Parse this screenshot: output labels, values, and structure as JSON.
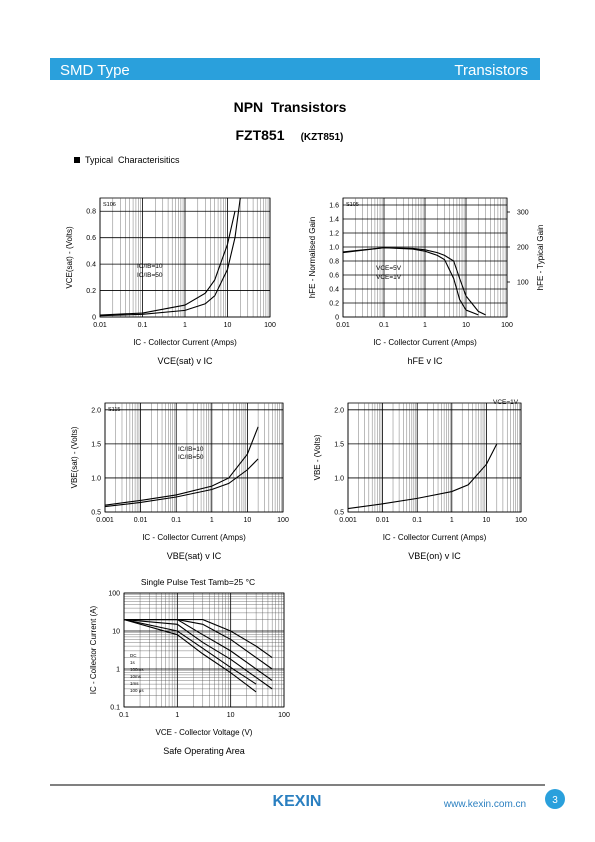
{
  "header": {
    "left": "SMD Type",
    "right": "Transistors"
  },
  "title": "NPN  Transistors",
  "part": "FZT851",
  "alt_part": "(KZT851)",
  "section": "Typical  Characterisitics",
  "chart_data": [
    {
      "type": "line",
      "code": "S106",
      "caption": "VCE(sat) v IC",
      "xlabel": "IC - Collector Current (Amps)",
      "ylabel": "VCE(sat) - (Volts)",
      "xlog": true,
      "xlim": [
        0.01,
        100
      ],
      "xticks": [
        0.01,
        0.1,
        1,
        10,
        100
      ],
      "ylim": [
        0,
        0.9
      ],
      "yticks": [
        0,
        0.2,
        0.4,
        0.6,
        0.8
      ],
      "grid": true,
      "x": [
        0.01,
        0.1,
        1,
        3,
        5,
        10,
        15,
        20
      ],
      "series": [
        {
          "name": "IC/IB=10",
          "color": "#000000",
          "values": [
            0.01,
            0.02,
            0.05,
            0.1,
            0.16,
            0.36,
            0.6,
            0.9
          ]
        },
        {
          "name": "IC/IB=50",
          "color": "#000000",
          "values": [
            0.015,
            0.03,
            0.09,
            0.18,
            0.28,
            0.55,
            0.8,
            null
          ]
        }
      ]
    },
    {
      "type": "line",
      "code": "S105",
      "caption": "hFE v IC",
      "xlabel": "IC - Collector Current (Amps)",
      "ylabel": "hFE - Normalised Gain",
      "y2label": "hFE - Typical Gain",
      "xlog": true,
      "xlim": [
        0.01,
        100
      ],
      "xticks": [
        0.01,
        0.1,
        1,
        10,
        100
      ],
      "ylim": [
        0,
        1.7
      ],
      "yticks": [
        0,
        0.2,
        0.4,
        0.6,
        0.8,
        {
          "value": 1,
          "label": "1.0"
        },
        1.2,
        1.4,
        1.6
      ],
      "y2lim": [
        0,
        340
      ],
      "y2ticks": [
        100,
        200,
        300
      ],
      "grid": true,
      "x": [
        0.01,
        0.1,
        0.5,
        1,
        2,
        3,
        5,
        7,
        10,
        20,
        30
      ],
      "series": [
        {
          "name": "VCE=5V",
          "color": "#000000",
          "values": [
            0.93,
            0.99,
            0.98,
            0.96,
            0.92,
            0.88,
            0.8,
            0.55,
            0.3,
            0.08,
            0.03
          ]
        },
        {
          "name": "VCE=1V",
          "color": "#000000",
          "values": [
            0.92,
            0.99,
            0.97,
            0.94,
            0.88,
            0.82,
            0.55,
            0.25,
            0.1,
            0.03,
            null
          ]
        }
      ]
    },
    {
      "type": "line",
      "code": "S115",
      "caption": "VBE(sat) v IC",
      "xlabel": "IC - Collector Current (Amps)",
      "ylabel": "VBE(sat) - (Volts)",
      "xlog": true,
      "xlim": [
        0.001,
        100
      ],
      "xticks": [
        0.001,
        0.01,
        0.1,
        1,
        10,
        100
      ],
      "ylim": [
        0.5,
        2.1
      ],
      "yticks": [
        0.5,
        {
          "value": 1,
          "label": "1.0"
        },
        1.5,
        {
          "value": 2,
          "label": "2.0"
        }
      ],
      "grid": true,
      "x": [
        0.001,
        0.01,
        0.1,
        1,
        3,
        10,
        20
      ],
      "series": [
        {
          "name": "IC/IB=10",
          "color": "#000000",
          "values": [
            0.6,
            0.67,
            0.75,
            0.88,
            1.0,
            1.35,
            1.75
          ]
        },
        {
          "name": "IC/IB=50",
          "color": "#000000",
          "values": [
            0.58,
            0.64,
            0.72,
            0.83,
            0.92,
            1.12,
            1.28
          ]
        }
      ]
    },
    {
      "type": "line",
      "caption": "VBE(on) v IC",
      "xlabel": "IC - Collector Current (Amps)",
      "ylabel": "VBE - (Volts)",
      "xlog": true,
      "xlim": [
        0.001,
        100
      ],
      "xticks": [
        0.001,
        0.01,
        0.1,
        1,
        10,
        100
      ],
      "ylim": [
        0.5,
        2.1
      ],
      "yticks": [
        0.5,
        {
          "value": 1,
          "label": "1.0"
        },
        1.5,
        {
          "value": 2,
          "label": "2.0"
        }
      ],
      "grid": true,
      "x": [
        0.001,
        0.01,
        0.1,
        1,
        3,
        10,
        20
      ],
      "series": [
        {
          "name": "VCE=1V",
          "color": "#000000",
          "values": [
            0.55,
            0.62,
            0.7,
            0.8,
            0.9,
            1.2,
            1.5
          ]
        }
      ]
    },
    {
      "type": "line",
      "title": "Single Pulse Test Tamb=25 °C",
      "caption": "Safe Operating Area",
      "xlabel": "VCE - Collector Voltage (V)",
      "ylabel": "IC - Collector Current (A)",
      "xlog": true,
      "ylog": true,
      "xlim": [
        0.1,
        100
      ],
      "xticks": [
        0.1,
        1,
        10,
        100
      ],
      "ylim": [
        0.1,
        100
      ],
      "yticks": [
        0.1,
        1,
        10,
        100
      ],
      "grid": true,
      "x": [
        0.1,
        1,
        3,
        10,
        30,
        60
      ],
      "series": [
        {
          "name": "DC",
          "color": "#000000",
          "values": [
            20,
            8,
            2.5,
            0.8,
            0.25,
            null
          ]
        },
        {
          "name": "1s",
          "color": "#000000",
          "values": [
            20,
            10,
            3.5,
            1.1,
            0.4,
            null
          ]
        },
        {
          "name": "100ms",
          "color": "#000000",
          "values": [
            20,
            15,
            5,
            1.8,
            0.6,
            0.3
          ]
        },
        {
          "name": "10ms",
          "color": "#000000",
          "values": [
            20,
            20,
            8,
            3,
            1,
            0.5
          ]
        },
        {
          "name": "1ms",
          "color": "#000000",
          "values": [
            20,
            20,
            15,
            6,
            2,
            1
          ]
        },
        {
          "name": "100 μs",
          "color": "#000000",
          "values": [
            20,
            20,
            20,
            10,
            4,
            2
          ]
        }
      ]
    }
  ],
  "footer": {
    "brand": "KEXIN",
    "url": "www.kexin.com.cn",
    "page": "3"
  }
}
